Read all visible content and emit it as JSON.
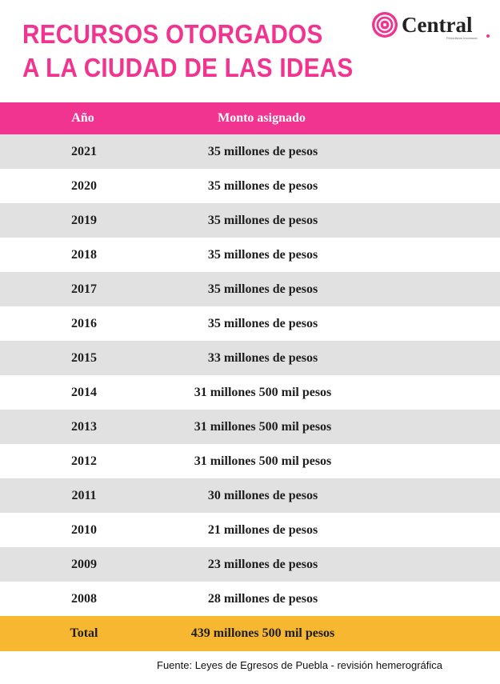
{
  "title": {
    "line1": "RECURSOS OTORGADOS",
    "line2": "A LA CIUDAD DE LAS IDEAS"
  },
  "brand": {
    "name": "Central",
    "tagline": "Periodismo Incómodo",
    "color": "#f0348f"
  },
  "table": {
    "headers": {
      "year": "Año",
      "amount": "Monto asignado"
    },
    "rows": [
      {
        "year": "2021",
        "amount": "35 millones de pesos"
      },
      {
        "year": "2020",
        "amount": "35 millones de pesos"
      },
      {
        "year": "2019",
        "amount": "35 millones de pesos"
      },
      {
        "year": "2018",
        "amount": "35 millones de pesos"
      },
      {
        "year": "2017",
        "amount": "35 millones de pesos"
      },
      {
        "year": "2016",
        "amount": "35 millones de pesos"
      },
      {
        "year": "2015",
        "amount": "33 millones de pesos"
      },
      {
        "year": "2014",
        "amount": "31 millones 500 mil pesos"
      },
      {
        "year": "2013",
        "amount": "31 millones 500 mil pesos"
      },
      {
        "year": "2012",
        "amount": "31 millones 500 mil pesos"
      },
      {
        "year": "2011",
        "amount": "30 millones de pesos"
      },
      {
        "year": "2010",
        "amount": "21 millones de pesos"
      },
      {
        "year": "2009",
        "amount": "23 millones de pesos"
      },
      {
        "year": "2008",
        "amount": "28 millones de pesos"
      }
    ],
    "total": {
      "label": "Total",
      "amount": "439 millones 500 mil pesos"
    }
  },
  "colors": {
    "header_bg": "#f0348f",
    "row_alt_bg": "#e1e1e1",
    "total_bg": "#f7b731"
  },
  "source": "Fuente: Leyes de Egresos de Puebla -  revisión hemerográfica"
}
